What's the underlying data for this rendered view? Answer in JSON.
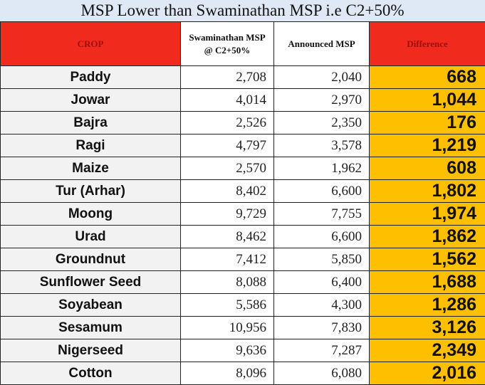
{
  "title": "MSP Lower than Swaminathan MSP i.e C2+50%",
  "headers": {
    "crop": "CROP",
    "swaminathan_line1": "Swaminathan MSP",
    "swaminathan_line2": "@ C2+50%",
    "announced": "Announced MSP",
    "difference": "Difference"
  },
  "colors": {
    "header_red": "#f02a1c",
    "difference_orange": "#fdbf00",
    "crop_gray": "#f2f2f2",
    "title_bg": "#dfe8f5"
  },
  "rows": [
    {
      "crop": "Paddy",
      "swaminathan": "2,708",
      "announced": "2,040",
      "difference": "668"
    },
    {
      "crop": "Jowar",
      "swaminathan": "4,014",
      "announced": "2,970",
      "difference": "1,044"
    },
    {
      "crop": "Bajra",
      "swaminathan": "2,526",
      "announced": "2,350",
      "difference": "176"
    },
    {
      "crop": "Ragi",
      "swaminathan": "4,797",
      "announced": "3,578",
      "difference": "1,219"
    },
    {
      "crop": "Maize",
      "swaminathan": "2,570",
      "announced": "1,962",
      "difference": "608"
    },
    {
      "crop": "Tur (Arhar)",
      "swaminathan": "8,402",
      "announced": "6,600",
      "difference": "1,802"
    },
    {
      "crop": "Moong",
      "swaminathan": "9,729",
      "announced": "7,755",
      "difference": "1,974"
    },
    {
      "crop": "Urad",
      "swaminathan": "8,462",
      "announced": "6,600",
      "difference": "1,862"
    },
    {
      "crop": "Groundnut",
      "swaminathan": "7,412",
      "announced": "5,850",
      "difference": "1,562"
    },
    {
      "crop": "Sunflower Seed",
      "swaminathan": "8,088",
      "announced": "6,400",
      "difference": "1,688"
    },
    {
      "crop": "Soyabean",
      "swaminathan": "5,586",
      "announced": "4,300",
      "difference": "1,286"
    },
    {
      "crop": "Sesamum",
      "swaminathan": "10,956",
      "announced": "7,830",
      "difference": "3,126"
    },
    {
      "crop": "Nigerseed",
      "swaminathan": "9,636",
      "announced": "7,287",
      "difference": "2,349"
    },
    {
      "crop": "Cotton",
      "swaminathan": "8,096",
      "announced": "6,080",
      "difference": "2,016"
    }
  ]
}
